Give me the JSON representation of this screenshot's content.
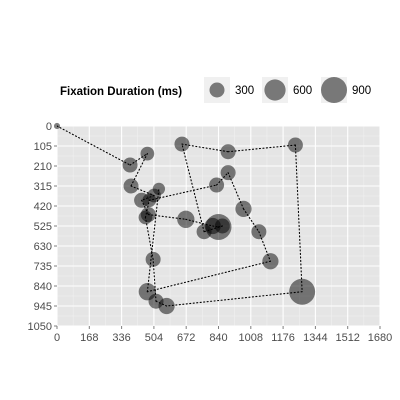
{
  "chart_data": {
    "type": "scatter",
    "title": "",
    "xlabel": "",
    "ylabel": "",
    "xlim": [
      0,
      1680
    ],
    "ylim": [
      0,
      1050
    ],
    "y_reversed": true,
    "x_ticks": [
      0,
      168,
      336,
      504,
      672,
      840,
      1008,
      1176,
      1344,
      1512,
      1680
    ],
    "y_ticks": [
      0,
      105,
      210,
      315,
      420,
      525,
      630,
      735,
      840,
      945,
      1050
    ],
    "grid": true,
    "connected_path": true,
    "path_style": "dotted",
    "point_color": "#000000",
    "point_opacity": 0.5,
    "panel_background": "#e5e5e5",
    "legend": {
      "title": "Fixation Duration (ms)",
      "placement": "top",
      "entries": [
        {
          "label": "300",
          "size": 300
        },
        {
          "label": "600",
          "size": 600
        },
        {
          "label": "900",
          "size": 900
        }
      ]
    },
    "fixations": [
      {
        "x": 0,
        "y": 0,
        "duration": 50
      },
      {
        "x": 380,
        "y": 205,
        "duration": 300
      },
      {
        "x": 470,
        "y": 145,
        "duration": 250
      },
      {
        "x": 385,
        "y": 315,
        "duration": 300
      },
      {
        "x": 505,
        "y": 365,
        "duration": 250
      },
      {
        "x": 440,
        "y": 390,
        "duration": 300
      },
      {
        "x": 475,
        "y": 465,
        "duration": 300
      },
      {
        "x": 670,
        "y": 490,
        "duration": 400
      },
      {
        "x": 810,
        "y": 525,
        "duration": 350
      },
      {
        "x": 840,
        "y": 530,
        "duration": 900
      },
      {
        "x": 860,
        "y": 525,
        "duration": 300
      },
      {
        "x": 765,
        "y": 555,
        "duration": 300
      },
      {
        "x": 650,
        "y": 95,
        "duration": 300
      },
      {
        "x": 890,
        "y": 135,
        "duration": 300
      },
      {
        "x": 1240,
        "y": 100,
        "duration": 300
      },
      {
        "x": 1275,
        "y": 870,
        "duration": 900
      },
      {
        "x": 570,
        "y": 945,
        "duration": 350
      },
      {
        "x": 515,
        "y": 920,
        "duration": 300
      },
      {
        "x": 500,
        "y": 700,
        "duration": 300
      },
      {
        "x": 460,
        "y": 480,
        "duration": 250
      },
      {
        "x": 480,
        "y": 390,
        "duration": 250
      },
      {
        "x": 830,
        "y": 310,
        "duration": 300
      },
      {
        "x": 890,
        "y": 245,
        "duration": 300
      },
      {
        "x": 970,
        "y": 435,
        "duration": 350
      },
      {
        "x": 1050,
        "y": 555,
        "duration": 300
      },
      {
        "x": 1110,
        "y": 710,
        "duration": 350
      },
      {
        "x": 470,
        "y": 870,
        "duration": 400
      },
      {
        "x": 530,
        "y": 330,
        "duration": 200
      }
    ]
  }
}
